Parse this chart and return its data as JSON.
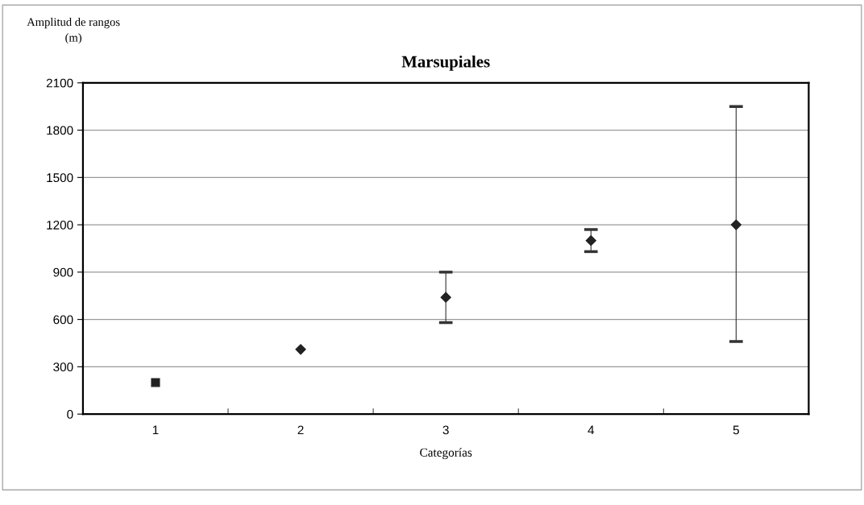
{
  "chart_data": {
    "type": "scatter",
    "title": "Marsupiales",
    "xlabel": "Categorías",
    "ylabel": "Amplitud de rangos\n(m)",
    "categories": [
      "1",
      "2",
      "3",
      "4",
      "5"
    ],
    "series": [
      {
        "color": "#222222",
        "marker": "square",
        "values": [
          200,
          null,
          null,
          null,
          null
        ]
      },
      {
        "color": "#222222",
        "marker": "diamond",
        "values": [
          null,
          410,
          740,
          1100,
          1200
        ],
        "errors": [
          null,
          null,
          [
            580,
            900
          ],
          [
            1030,
            1170
          ],
          [
            460,
            1950
          ]
        ]
      }
    ],
    "ylim": [
      0,
      2100
    ],
    "yticks": [
      0,
      300,
      600,
      900,
      1200,
      1500,
      1800,
      2100
    ],
    "grid": "y",
    "legend": false
  }
}
